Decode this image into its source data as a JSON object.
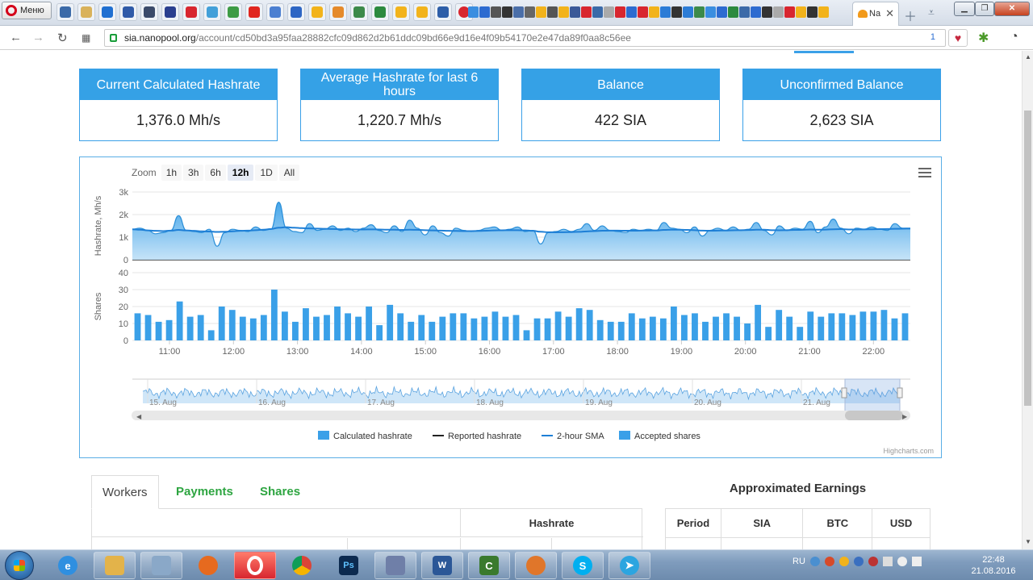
{
  "browser": {
    "menu_label": "Меню",
    "active_tab_title": "Na",
    "url_host": "sia.nanopool.org",
    "url_path": "/account/cd50bd3a95faa28882cfc09d862d2b61ddc09bd66e9d16e4f09b54170e2e47da89f0aa8c56ee",
    "extension_badge": "1"
  },
  "stats": [
    {
      "title": "Current Calculated Hashrate",
      "value": "1,376.0 Mh/s"
    },
    {
      "title": "Average Hashrate for last 6 hours",
      "value": "1,220.7 Mh/s"
    },
    {
      "title": "Balance",
      "value": "422 SIA"
    },
    {
      "title": "Unconfirmed Balance",
      "value": "2,623 SIA"
    }
  ],
  "zoom": {
    "label": "Zoom",
    "buttons": [
      "1h",
      "3h",
      "6h",
      "12h",
      "1D",
      "All"
    ],
    "active": "12h"
  },
  "chart_data": {
    "type": "area",
    "hashrate_axis": {
      "label": "Hashrate, Mh/s",
      "ticks": [
        "0",
        "1k",
        "2k",
        "3k"
      ],
      "ylim": [
        0,
        3000
      ]
    },
    "shares_axis": {
      "label": "Shares",
      "ticks": [
        "0",
        "10",
        "20",
        "30",
        "40"
      ],
      "ylim": [
        0,
        40
      ]
    },
    "x_ticks": [
      "11:00",
      "12:00",
      "13:00",
      "14:00",
      "15:00",
      "16:00",
      "17:00",
      "18:00",
      "19:00",
      "20:00",
      "21:00",
      "22:00"
    ],
    "navigator_ticks": [
      "15. Aug",
      "16. Aug",
      "17. Aug",
      "18. Aug",
      "19. Aug",
      "20. Aug",
      "21. Aug"
    ],
    "series": [
      {
        "name": "Calculated hashrate",
        "color": "#3aa0e8",
        "values": [
          1350,
          1400,
          1300,
          1150,
          1200,
          1300,
          1950,
          1300,
          1250,
          1200,
          1350,
          600,
          1200,
          1350,
          1300,
          1250,
          1450,
          1300,
          1350,
          2550,
          1400,
          1250,
          1200,
          1600,
          1300,
          1350,
          1500,
          1300,
          1400,
          1250,
          1400,
          1550,
          1300,
          1200,
          1500,
          1250,
          1750,
          1400,
          1100,
          1500,
          1200,
          1050,
          1400,
          1300,
          1250,
          1300,
          1400,
          1450,
          1300,
          1350,
          1450,
          1250,
          1300,
          700,
          1200,
          1250,
          1350,
          1250,
          1350,
          1600,
          1300,
          1500,
          1300,
          1250,
          1200,
          1350,
          1300,
          1350,
          1300,
          1650,
          1400,
          1350,
          1200,
          1450,
          1050,
          1300,
          1400,
          1300,
          1450,
          1300,
          1350,
          1650,
          1300,
          1100,
          1500,
          1300,
          1400,
          1350,
          1700,
          1200,
          1450,
          1800,
          1400,
          1150,
          1400,
          1350,
          1450,
          1350,
          1300,
          1600,
          1400,
          1400
        ]
      },
      {
        "name": "Reported hashrate",
        "color": "#222222",
        "values": []
      },
      {
        "name": "2-hour SMA",
        "color": "#1e7fd6",
        "values": [
          1350,
          1330,
          1300,
          1280,
          1270,
          1290,
          1320,
          1300,
          1280,
          1260,
          1250,
          1230,
          1240,
          1260,
          1280,
          1290,
          1310,
          1330,
          1360,
          1420,
          1440,
          1420,
          1400,
          1390,
          1380,
          1370,
          1360,
          1350,
          1345,
          1340,
          1340,
          1345,
          1340,
          1330,
          1330,
          1320,
          1330,
          1325,
          1310,
          1300,
          1290,
          1280,
          1275,
          1270,
          1270,
          1275,
          1285,
          1300,
          1305,
          1310,
          1310,
          1300,
          1280,
          1240,
          1220,
          1215,
          1220,
          1225,
          1235,
          1255,
          1270,
          1285,
          1290,
          1290,
          1285,
          1285,
          1290,
          1295,
          1300,
          1320,
          1330,
          1330,
          1320,
          1310,
          1290,
          1285,
          1290,
          1295,
          1305,
          1310,
          1315,
          1330,
          1330,
          1310,
          1305,
          1310,
          1320,
          1325,
          1340,
          1330,
          1335,
          1350,
          1355,
          1340,
          1340,
          1345,
          1350,
          1355,
          1360,
          1370,
          1375,
          1380
        ]
      },
      {
        "name": "Accepted shares",
        "color": "#3aa0e8",
        "values": [
          16,
          15,
          11,
          12,
          23,
          14,
          15,
          6,
          20,
          18,
          14,
          13,
          15,
          30,
          17,
          11,
          19,
          14,
          15,
          20,
          16,
          14,
          20,
          9,
          21,
          16,
          11,
          15,
          11,
          14,
          16,
          16,
          13,
          14,
          17,
          14,
          15,
          6,
          13,
          13,
          17,
          14,
          19,
          18,
          12,
          11,
          11,
          16,
          13,
          14,
          13,
          20,
          15,
          16,
          11,
          14,
          16,
          14,
          10,
          21,
          8,
          18,
          14,
          8,
          17,
          14,
          16,
          16,
          15,
          17,
          17,
          18,
          13,
          16
        ]
      }
    ]
  },
  "credits": "Highcharts.com",
  "tabs": {
    "workers": "Workers",
    "payments": "Payments",
    "shares": "Shares"
  },
  "workers_table": {
    "hashrate_header": "Hashrate"
  },
  "earnings": {
    "title": "Approximated Earnings",
    "headers": [
      "Period",
      "SIA",
      "BTC",
      "USD"
    ]
  },
  "taskbar": {
    "lang": "RU",
    "time": "22:48",
    "date": "21.08.2016"
  }
}
